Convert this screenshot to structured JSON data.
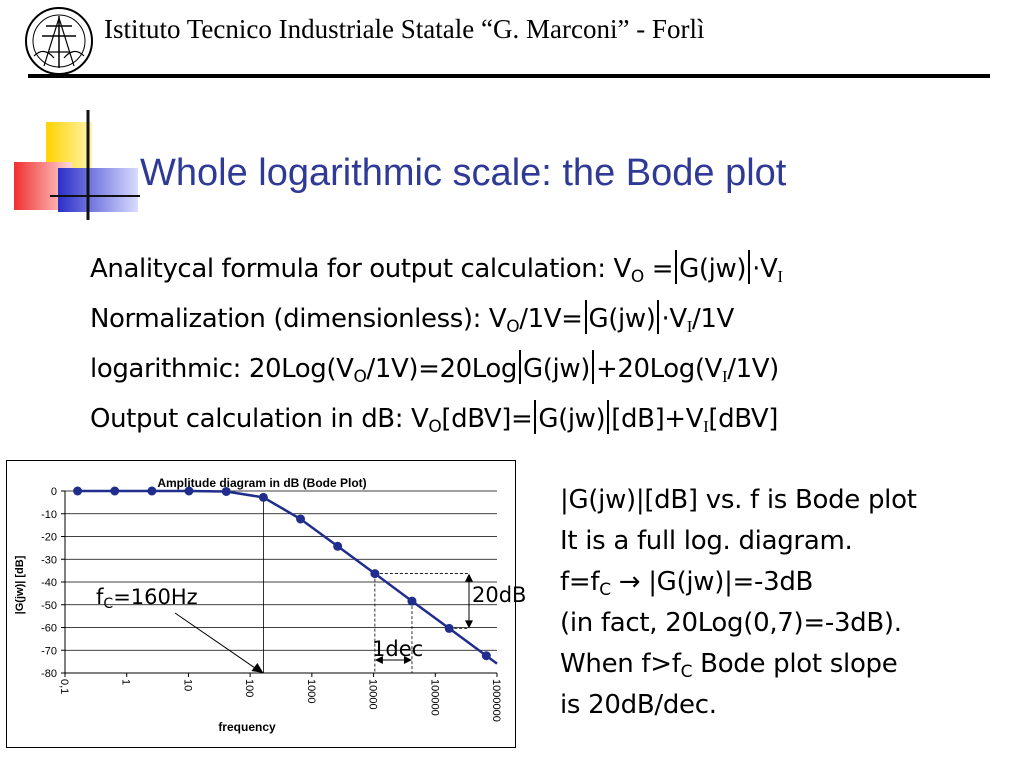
{
  "header": {
    "institute": "Istituto Tecnico Industriale Statale “G. Marconi” -  Forlì"
  },
  "slide": {
    "title": "Whole logarithmic scale: the Bode plot"
  },
  "formulas": {
    "analytical_label": "Analitycal formula for output calculation: V",
    "normalization_label": "Normalization (dimensionless): V",
    "logarithmic_label": "logarithmic: 20Log(V",
    "output_label": "Output calculation in dB: V",
    "sub_o": "O",
    "sub_i": "I",
    "gjw": "G(jw)",
    "eq": " =",
    "dot_v": "·V",
    "over_1v": "/1V",
    "eq_nospace": "=",
    "log_mid": "/1V)=20Log",
    "log_end_a": "+20Log(V",
    "log_end_b": "/1V)",
    "db_a": "[dBV]=",
    "db_b": "[dB]+V",
    "db_c": "[dBV]"
  },
  "notes": {
    "line1": "|G(jw)|[dB] vs. f is Bode plot",
    "line2": "It is a full log. diagram.",
    "line3_a": "f=f",
    "line3_sub": "C",
    "line3_b": "  → |G(jw)|=-3dB",
    "line4": "(in fact, 20Log(0,7)=-3dB).",
    "line5_a": "When f>f",
    "line5_sub": "C",
    "line5_b": "  Bode plot slope",
    "line6": "is 20dB/dec."
  },
  "callouts": {
    "fc_a": "f",
    "fc_sub": "C",
    "fc_b": "=160Hz",
    "twenty_db": "20dB",
    "one_dec": "1dec"
  },
  "colors": {
    "title_blue": "#2f3a96",
    "series_blue": "#1f2d8c",
    "deco_yellow": "#ffd400",
    "deco_red": "#f03030",
    "deco_blue": "#2b2fc8"
  },
  "chart_data": {
    "type": "line",
    "title": "Amplitude diagram in dB (Bode Plot)",
    "xlabel": "frequency",
    "ylabel": "|G(jw)| [dB]",
    "x_scale": "log",
    "x_ticks": [
      "0,1",
      "1",
      "10",
      "100",
      "1000",
      "10000",
      "100000",
      "1000000"
    ],
    "y_ticks": [
      0,
      -10,
      -20,
      -30,
      -40,
      -50,
      -60,
      -70,
      -80
    ],
    "xlim": [
      0.1,
      1000000
    ],
    "ylim": [
      -80,
      0
    ],
    "grid": "horizontal",
    "x": [
      0.16,
      0.64,
      2.56,
      10.2,
      41,
      164,
      655,
      2620,
      10500,
      41900,
      168000,
      671000
    ],
    "values": [
      0,
      0,
      0,
      0,
      -0.2,
      -2.8,
      -12.3,
      -24.3,
      -36.3,
      -48.4,
      -60.4,
      -72.4
    ]
  }
}
